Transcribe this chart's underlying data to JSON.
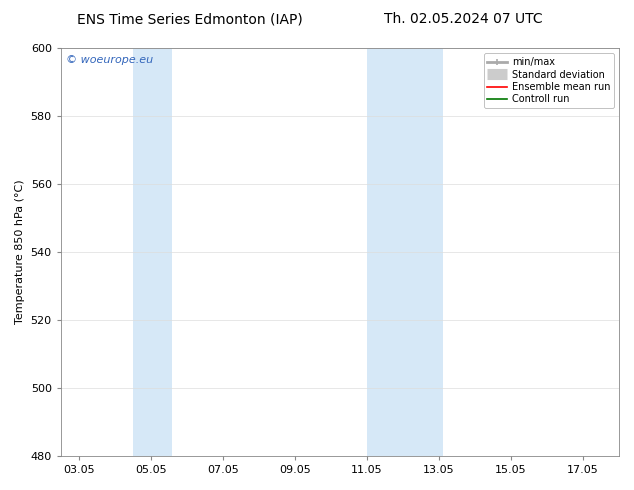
{
  "title_left": "ENS Time Series Edmonton (IAP)",
  "title_right": "Th. 02.05.2024 07 UTC",
  "ylabel": "Temperature 850 hPa (°C)",
  "ylim": [
    480,
    600
  ],
  "yticks": [
    480,
    500,
    520,
    540,
    560,
    580,
    600
  ],
  "xlim": [
    2.5,
    18.0
  ],
  "xtick_labels": [
    "03.05",
    "05.05",
    "07.05",
    "09.05",
    "11.05",
    "13.05",
    "15.05",
    "17.05"
  ],
  "xtick_positions": [
    3,
    5,
    7,
    9,
    11,
    13,
    15,
    17
  ],
  "shaded_bands": [
    {
      "x_start": 4.5,
      "x_end": 5.6,
      "color": "#d6e8f7"
    },
    {
      "x_start": 11.0,
      "x_end": 13.1,
      "color": "#d6e8f7"
    }
  ],
  "watermark_text": "© woeurope.eu",
  "watermark_color": "#3366bb",
  "background_color": "#ffffff",
  "legend_items": [
    {
      "label": "min/max",
      "color": "#aaaaaa",
      "lw": 2
    },
    {
      "label": "Standard deviation",
      "color": "#cccccc",
      "lw": 8
    },
    {
      "label": "Ensemble mean run",
      "color": "#ff0000",
      "lw": 1.2
    },
    {
      "label": "Controll run",
      "color": "#007700",
      "lw": 1.2
    }
  ],
  "font_size_title": 10,
  "font_size_axis": 8,
  "font_size_legend": 7,
  "font_size_watermark": 8,
  "grid_color": "#dddddd",
  "spine_color": "#888888"
}
